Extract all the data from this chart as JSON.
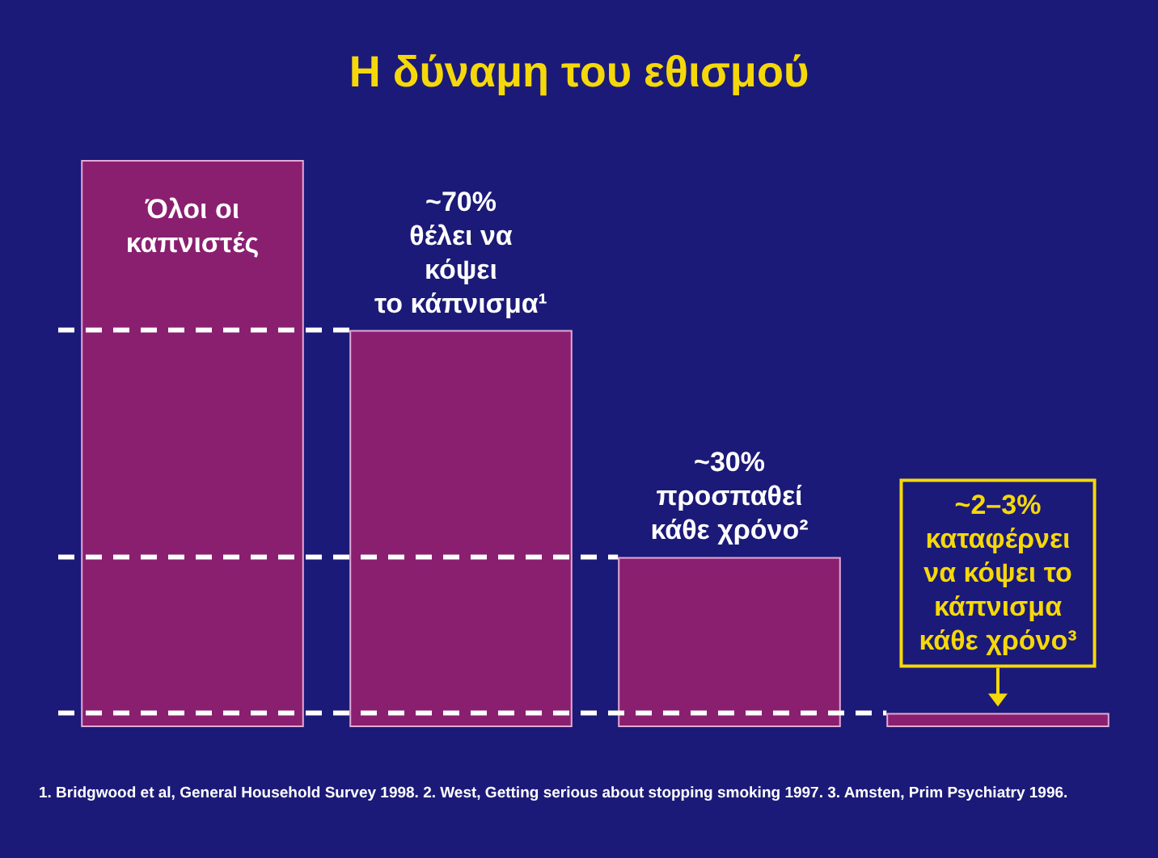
{
  "chart_data": {
    "type": "bar",
    "title": "Η δύναμη του εθισμού",
    "tick_labels": false,
    "categories": [
      null,
      null,
      null,
      null
    ],
    "values": [
      100,
      70,
      30,
      2.5
    ],
    "value_labels": [
      "Όλοι οι\nκαπνιστές",
      "~70%\nθέλει να\nκόψει\nτο κάπνισμα¹",
      "~30%\nπροσπαθεί\nκάθε χρόνο²",
      "~2–3%\nκαταφέρνει\nνα κόψει το\nκάπνισμα\nκάθε χρόνο³"
    ],
    "color": "#8a1f70",
    "ref_lines": [
      {
        "axis": "y",
        "value": 70,
        "color": "#ffffff",
        "line_style": "dashed"
      },
      {
        "axis": "y",
        "value": 30,
        "color": "#ffffff",
        "line_style": "dashed"
      },
      {
        "axis": "y",
        "value": 2.5,
        "color": "#ffffff",
        "line_style": "dashed"
      }
    ],
    "annotations": [
      "1. Bridgwood et al, General Household Survey 1998. 2. West, Getting serious about stopping smoking 1997. 3. Amsten, Prim Psychiatry 1996."
    ]
  }
}
